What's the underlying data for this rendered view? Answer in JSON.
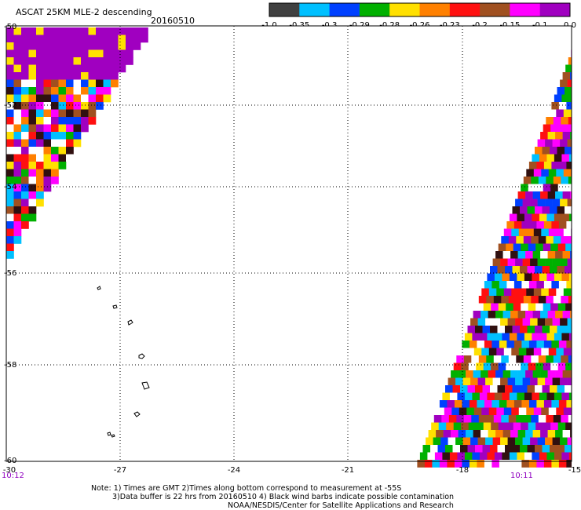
{
  "header": {
    "title": "ASCAT 25KM MLE-2 descending",
    "date": "20160510"
  },
  "colorbar": {
    "labels": [
      "-1.0",
      "-0.35",
      "-0.3",
      "-0.29",
      "-0.28",
      "-0.26",
      "-0.23",
      "-0.2",
      "-0.15",
      "-0.1",
      "0.0"
    ],
    "colors": [
      "#404040",
      "#00c0ff",
      "#0040ff",
      "#00b000",
      "#ffe000",
      "#ff8000",
      "#ff1010",
      "#a05020",
      "#ff00ff",
      "#a000c0"
    ]
  },
  "map": {
    "lat_labels": [
      "-50",
      "-52",
      "-54",
      "-56",
      "-58",
      "-60"
    ],
    "lon_labels": [
      "-30",
      "-27",
      "-24",
      "-21",
      "-18",
      "-15"
    ],
    "time_left": "10:12",
    "time_right": "10:11",
    "cell_palette": [
      "#a000c0",
      "#ff00ff",
      "#ff1010",
      "#ff8000",
      "#ffe000",
      "#a05020",
      "#301010",
      "#00b000",
      "#0040ff",
      "#00c0ff",
      "#ffffff"
    ],
    "time_color": "#9000c0"
  },
  "footer": {
    "line1": "Note: 1) Times are GMT 2)Times along bottom correspond to measurement at -55S",
    "line2": "3)Data buffer is 22 hrs from 20160510 4) Black wind barbs indicate possible contamination",
    "line3": "NOAA/NESDIS/Center for Satellite Applications and Research"
  }
}
